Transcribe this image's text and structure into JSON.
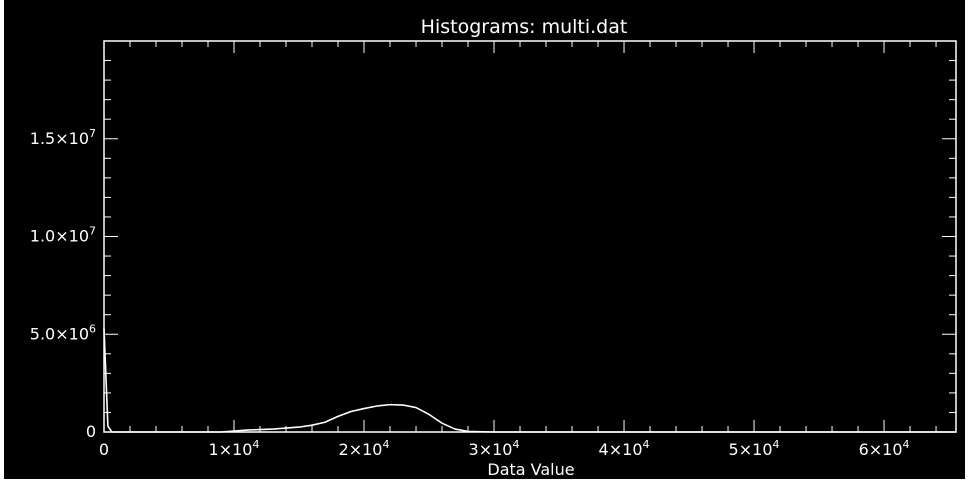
{
  "chart_data": {
    "type": "line",
    "title": "Histograms: multi.dat",
    "xlabel": "Data Value",
    "ylabel": "",
    "xlim": [
      0,
      65535
    ],
    "ylim": [
      0,
      20000000
    ],
    "x_ticks": [
      {
        "value": 0,
        "mant": "0",
        "exp": ""
      },
      {
        "value": 10000,
        "mant": "1×10",
        "exp": "4"
      },
      {
        "value": 20000,
        "mant": "2×10",
        "exp": "4"
      },
      {
        "value": 30000,
        "mant": "3×10",
        "exp": "4"
      },
      {
        "value": 40000,
        "mant": "4×10",
        "exp": "4"
      },
      {
        "value": 50000,
        "mant": "5×10",
        "exp": "4"
      },
      {
        "value": 60000,
        "mant": "6×10",
        "exp": "4"
      }
    ],
    "y_ticks": [
      {
        "value": 0,
        "mant": "0",
        "exp": ""
      },
      {
        "value": 5000000,
        "mant": "5.0×10",
        "exp": "6"
      },
      {
        "value": 10000000,
        "mant": "1.0×10",
        "exp": "7"
      },
      {
        "value": 15000000,
        "mant": "1.5×10",
        "exp": "7"
      }
    ],
    "series": [
      {
        "x": [
          0,
          300,
          600,
          1000,
          5000,
          9000,
          11000,
          13000,
          15000,
          16000,
          17000,
          18000,
          19000,
          20000,
          21000,
          22000,
          23000,
          24000,
          25000,
          26000,
          27000,
          28000,
          30000,
          40000,
          50000,
          60000,
          65535
        ],
        "y": [
          5300000,
          300000,
          0,
          0,
          0,
          0,
          100000,
          150000,
          250000,
          350000,
          500000,
          800000,
          1050000,
          1200000,
          1330000,
          1400000,
          1380000,
          1250000,
          900000,
          450000,
          150000,
          30000,
          0,
          0,
          0,
          0,
          0
        ]
      }
    ],
    "grid": false,
    "legend": "none",
    "colors": {
      "background": "#000000",
      "foreground": "#ffffff",
      "border": "#ffffff"
    }
  }
}
